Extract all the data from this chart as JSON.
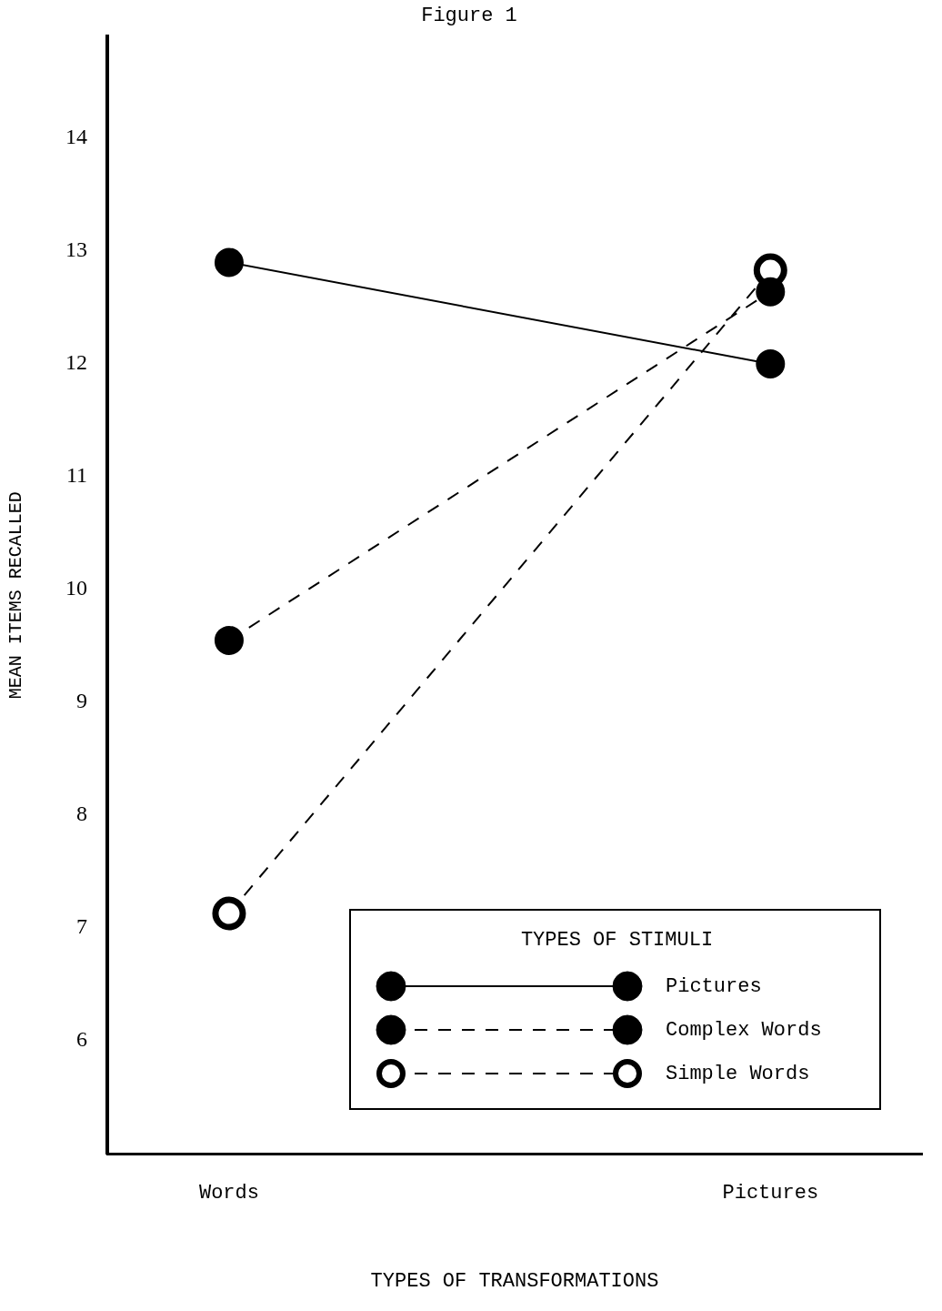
{
  "chart_data": {
    "type": "line",
    "title": "Figure 1",
    "xlabel": "TYPES OF TRANSFORMATIONS",
    "ylabel": "MEAN ITEMS RECALLED",
    "legend_title": "TYPES OF STIMULI",
    "legend": "bottom right",
    "marker": "circle",
    "categories": [
      "Words",
      "Pictures"
    ],
    "ylim": [
      5,
      14.9
    ],
    "yticks": [
      6,
      7,
      8,
      9,
      10,
      11,
      12,
      13,
      14
    ],
    "series": [
      {
        "name": "Pictures",
        "color": "#000000",
        "values": [
          12.9,
          12.0
        ],
        "line_style": "solid"
      },
      {
        "name": "Complex Words",
        "color": "#000000",
        "values": [
          9.55,
          12.64
        ],
        "line_style": "dashed"
      },
      {
        "name": "Simple Words",
        "color": "#000000",
        "values": [
          7.13,
          12.83
        ],
        "line_style": "dashed"
      }
    ]
  }
}
